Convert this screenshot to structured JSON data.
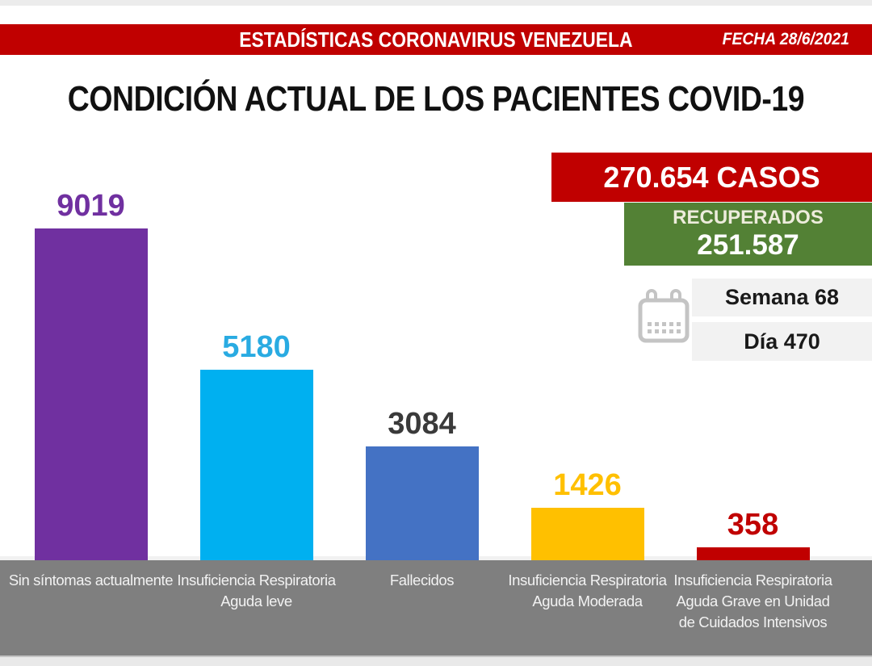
{
  "header": {
    "title": "ESTADÍSTICAS CORONAVIRUS VENEZUELA",
    "date": "FECHA 28/6/2021"
  },
  "page_title": "CONDICIÓN ACTUAL DE LOS PACIENTES COVID-19",
  "stats": {
    "cases_label": "270.654 CASOS",
    "recovered_title": "RECUPERADOS",
    "recovered_value": "251.587",
    "week_label": "Semana 68",
    "day_label": "Día 470"
  },
  "colors": {
    "accent_red": "#C00000",
    "accent_green": "#538135",
    "band_gray": "#7F7F7F",
    "light_box": "#F2F2F2"
  },
  "icons": {
    "calendar": "calendar-icon"
  },
  "chart_data": {
    "type": "bar",
    "title": "CONDICIÓN ACTUAL DE LOS PACIENTES COVID-19",
    "categories": [
      "Sin síntomas actualmente",
      "Insuficiencia Respiratoria Aguda leve",
      "Fallecidos",
      "Insuficiencia Respiratoria Aguda Moderada",
      "Insuficiencia Respiratoria Aguda Grave en Unidad de Cuidados Intensivos"
    ],
    "values": [
      9019,
      5180,
      3084,
      1426,
      358
    ],
    "bar_colors": [
      "#7030A0",
      "#00B0F0",
      "#4472C4",
      "#FFC000",
      "#C00000"
    ],
    "value_label_colors": [
      "#7030A0",
      "#29ABE2",
      "#3A3A3A",
      "#FFC000",
      "#C00000"
    ],
    "ylim": [
      0,
      9019
    ],
    "xlabel": "",
    "ylabel": "",
    "grid": false,
    "legend": false,
    "data_labels": "above-bars"
  }
}
